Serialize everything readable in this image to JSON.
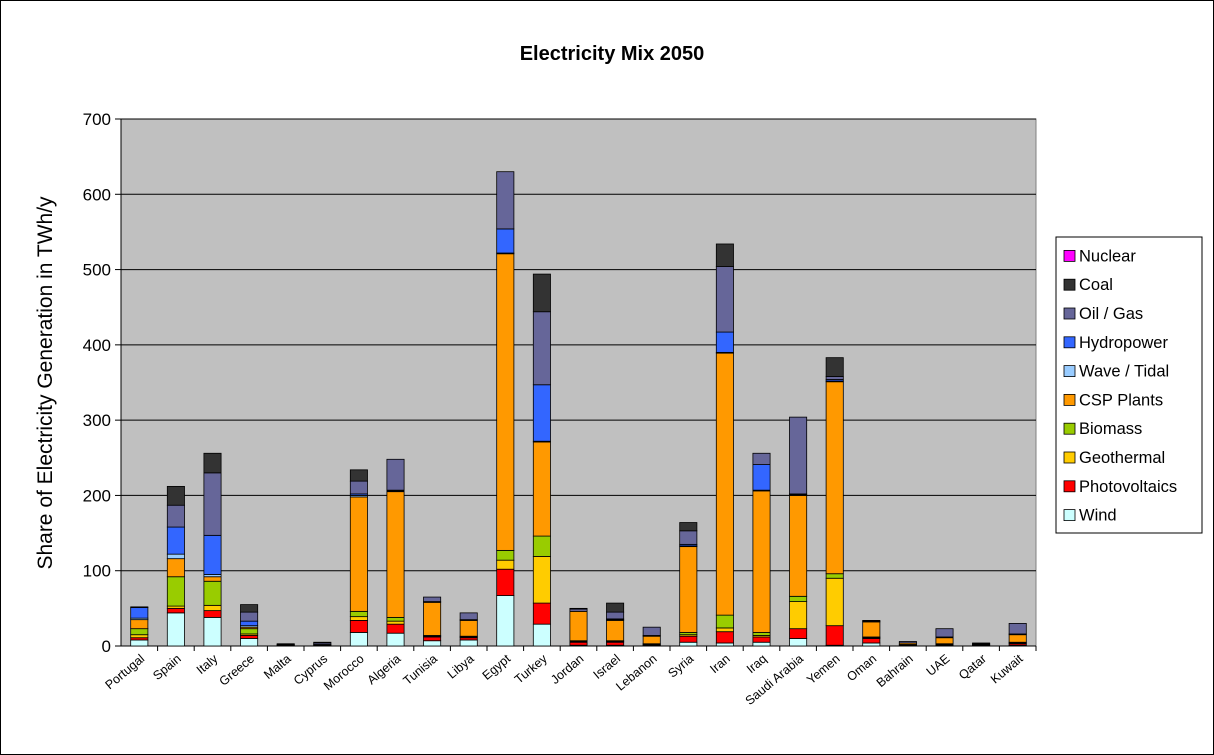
{
  "chart_data": {
    "type": "bar",
    "stacked": true,
    "title": "Electricity Mix 2050",
    "xlabel": "",
    "ylabel": "Share of Electricity Generation in TWh/y",
    "ylim": [
      0,
      700
    ],
    "yticks": [
      0,
      100,
      200,
      300,
      400,
      500,
      600,
      700
    ],
    "grid": true,
    "legend_position": "right",
    "plot_background": "#c0c0c0",
    "categories": [
      "Portugal",
      "Spain",
      "Italy",
      "Greece",
      "Malta",
      "Cyprus",
      "Morocco",
      "Algeria",
      "Tunisia",
      "Libya",
      "Egypt",
      "Turkey",
      "Jordan",
      "Israel",
      "Lebanon",
      "Syria",
      "Iran",
      "Iraq",
      "Saudi Arabia",
      "Yemen",
      "Oman",
      "Bahrain",
      "UAE",
      "Qatar",
      "Kuwait"
    ],
    "series": [
      {
        "name": "Wind",
        "color": "#ccffff",
        "values": [
          8,
          44,
          38,
          10,
          1,
          1,
          18,
          17,
          7,
          8,
          67,
          29,
          1,
          1,
          1,
          5,
          4,
          5,
          10,
          1,
          4,
          1,
          1,
          1,
          1
        ]
      },
      {
        "name": "Photovoltaics",
        "color": "#ff0000",
        "values": [
          3,
          6,
          9,
          4,
          0,
          0,
          16,
          12,
          5,
          3,
          35,
          28,
          4,
          4,
          1,
          8,
          15,
          7,
          13,
          26,
          6,
          1,
          1,
          1,
          2
        ]
      },
      {
        "name": "Geothermal",
        "color": "#ffcc00",
        "values": [
          4,
          3,
          7,
          2,
          0,
          0,
          5,
          4,
          1,
          1,
          12,
          62,
          1,
          1,
          0,
          2,
          5,
          2,
          36,
          63,
          1,
          0,
          0,
          0,
          1
        ]
      },
      {
        "name": "Biomass",
        "color": "#99cc00",
        "values": [
          8,
          39,
          32,
          7,
          0,
          0,
          7,
          5,
          1,
          1,
          13,
          27,
          1,
          1,
          1,
          3,
          17,
          4,
          7,
          6,
          1,
          0,
          1,
          0,
          1
        ]
      },
      {
        "name": "CSP Plants",
        "color": "#ff9900",
        "values": [
          12,
          24,
          6,
          2,
          1,
          1,
          152,
          167,
          44,
          21,
          394,
          125,
          39,
          27,
          10,
          114,
          348,
          188,
          134,
          255,
          20,
          2,
          8,
          1,
          10
        ]
      },
      {
        "name": "Wave / Tidal",
        "color": "#99ccff",
        "values": [
          2,
          6,
          3,
          2,
          0,
          0,
          2,
          1,
          1,
          1,
          1,
          1,
          0,
          1,
          0,
          1,
          1,
          1,
          1,
          1,
          1,
          0,
          1,
          0,
          1
        ]
      },
      {
        "name": "Hydropower",
        "color": "#3366ff",
        "values": [
          14,
          36,
          52,
          6,
          0,
          0,
          2,
          1,
          0,
          0,
          32,
          75,
          0,
          1,
          1,
          2,
          27,
          34,
          1,
          2,
          0,
          0,
          0,
          0,
          0
        ]
      },
      {
        "name": "Oil / Gas",
        "color": "#666699",
        "values": [
          1,
          29,
          83,
          12,
          1,
          2,
          17,
          41,
          6,
          9,
          76,
          97,
          3,
          9,
          11,
          18,
          87,
          15,
          102,
          4,
          1,
          2,
          11,
          1,
          14
        ]
      },
      {
        "name": "Coal",
        "color": "#333333",
        "values": [
          0,
          25,
          26,
          10,
          0,
          1,
          15,
          0,
          0,
          0,
          0,
          50,
          1,
          12,
          0,
          11,
          30,
          0,
          0,
          25,
          0,
          0,
          0,
          0,
          0
        ]
      },
      {
        "name": "Nuclear",
        "color": "#ff00ff",
        "values": [
          0,
          0,
          0,
          0,
          0,
          0,
          0,
          0,
          0,
          0,
          0,
          0,
          0,
          0,
          0,
          0,
          0,
          0,
          0,
          0,
          0,
          0,
          0,
          0,
          0
        ]
      }
    ]
  }
}
